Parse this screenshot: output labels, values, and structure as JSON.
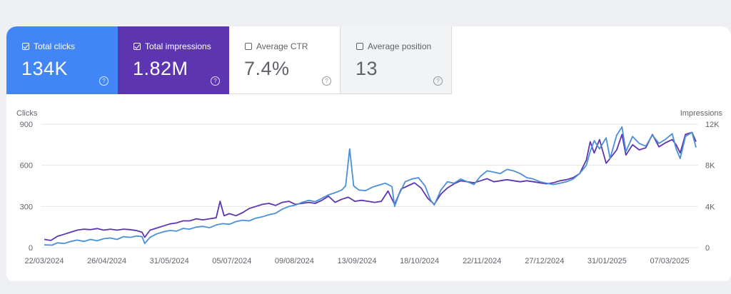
{
  "metrics": [
    {
      "label": "Total clicks",
      "value": "134K",
      "checked": true,
      "color": "#4285f4"
    },
    {
      "label": "Total impressions",
      "value": "1.82M",
      "checked": true,
      "color": "#5e35b1"
    },
    {
      "label": "Average CTR",
      "value": "7.4%",
      "checked": false
    },
    {
      "label": "Average position",
      "value": "13",
      "checked": false
    }
  ],
  "help_glyph": "?",
  "chart_data": {
    "type": "line",
    "ylabel_left": "Clicks",
    "ylabel_right": "Impressions",
    "y_left_ticks": [
      "900",
      "600",
      "300",
      "0"
    ],
    "y_right_ticks": [
      "12K",
      "8K",
      "4K",
      "0"
    ],
    "ylim_left": [
      0,
      900
    ],
    "ylim_right": [
      0,
      12000
    ],
    "x_ticks": [
      "22/03/2024",
      "26/04/2024",
      "31/05/2024",
      "05/07/2024",
      "09/08/2024",
      "13/09/2024",
      "18/10/2024",
      "22/11/2024",
      "27/12/2024",
      "31/01/2025",
      "07/03/2025"
    ],
    "grid": true,
    "series": [
      {
        "name": "Total clicks",
        "axis": "left",
        "color": "#4a90d9",
        "points": [
          [
            0,
            20
          ],
          [
            6,
            18
          ],
          [
            10,
            35
          ],
          [
            15,
            30
          ],
          [
            20,
            45
          ],
          [
            25,
            55
          ],
          [
            30,
            45
          ],
          [
            35,
            60
          ],
          [
            40,
            50
          ],
          [
            45,
            65
          ],
          [
            50,
            70
          ],
          [
            55,
            60
          ],
          [
            60,
            80
          ],
          [
            65,
            75
          ],
          [
            70,
            85
          ],
          [
            74,
            80
          ],
          [
            76,
            30
          ],
          [
            80,
            75
          ],
          [
            85,
            100
          ],
          [
            90,
            115
          ],
          [
            95,
            125
          ],
          [
            100,
            120
          ],
          [
            105,
            140
          ],
          [
            110,
            135
          ],
          [
            115,
            150
          ],
          [
            120,
            155
          ],
          [
            125,
            145
          ],
          [
            130,
            165
          ],
          [
            135,
            175
          ],
          [
            140,
            170
          ],
          [
            145,
            190
          ],
          [
            150,
            200
          ],
          [
            155,
            195
          ],
          [
            160,
            215
          ],
          [
            165,
            225
          ],
          [
            170,
            240
          ],
          [
            175,
            250
          ],
          [
            180,
            280
          ],
          [
            185,
            300
          ],
          [
            190,
            310
          ],
          [
            195,
            330
          ],
          [
            200,
            345
          ],
          [
            205,
            335
          ],
          [
            210,
            360
          ],
          [
            215,
            385
          ],
          [
            220,
            400
          ],
          [
            225,
            420
          ],
          [
            228,
            450
          ],
          [
            231,
            720
          ],
          [
            234,
            450
          ],
          [
            238,
            420
          ],
          [
            243,
            415
          ],
          [
            248,
            440
          ],
          [
            253,
            455
          ],
          [
            258,
            470
          ],
          [
            263,
            445
          ],
          [
            265,
            300
          ],
          [
            268,
            380
          ],
          [
            273,
            480
          ],
          [
            278,
            500
          ],
          [
            283,
            510
          ],
          [
            288,
            450
          ],
          [
            292,
            350
          ],
          [
            295,
            310
          ],
          [
            300,
            420
          ],
          [
            305,
            480
          ],
          [
            310,
            470
          ],
          [
            315,
            500
          ],
          [
            320,
            480
          ],
          [
            325,
            460
          ],
          [
            330,
            520
          ],
          [
            335,
            560
          ],
          [
            340,
            550
          ],
          [
            345,
            540
          ],
          [
            350,
            570
          ],
          [
            355,
            560
          ],
          [
            360,
            540
          ],
          [
            365,
            510
          ],
          [
            370,
            500
          ],
          [
            375,
            480
          ],
          [
            380,
            470
          ],
          [
            385,
            460
          ],
          [
            390,
            470
          ],
          [
            395,
            480
          ],
          [
            400,
            500
          ],
          [
            405,
            540
          ],
          [
            410,
            600
          ],
          [
            413,
            700
          ],
          [
            416,
            780
          ],
          [
            420,
            720
          ],
          [
            425,
            800
          ],
          [
            428,
            650
          ],
          [
            433,
            820
          ],
          [
            437,
            880
          ],
          [
            440,
            700
          ],
          [
            445,
            810
          ],
          [
            450,
            760
          ],
          [
            455,
            740
          ],
          [
            460,
            820
          ],
          [
            465,
            760
          ],
          [
            470,
            790
          ],
          [
            475,
            830
          ],
          [
            478,
            720
          ],
          [
            481,
            650
          ],
          [
            485,
            810
          ],
          [
            490,
            840
          ],
          [
            493,
            730
          ]
        ]
      },
      {
        "name": "Total impressions",
        "axis": "right",
        "color": "#5e35b1",
        "points": [
          [
            0,
            800
          ],
          [
            5,
            700
          ],
          [
            10,
            1100
          ],
          [
            15,
            1300
          ],
          [
            20,
            1500
          ],
          [
            25,
            1700
          ],
          [
            30,
            1800
          ],
          [
            35,
            1750
          ],
          [
            40,
            1850
          ],
          [
            45,
            1700
          ],
          [
            50,
            1800
          ],
          [
            55,
            1700
          ],
          [
            60,
            1800
          ],
          [
            65,
            1750
          ],
          [
            70,
            1650
          ],
          [
            74,
            1500
          ],
          [
            76,
            1000
          ],
          [
            80,
            1700
          ],
          [
            85,
            1900
          ],
          [
            90,
            2100
          ],
          [
            95,
            2300
          ],
          [
            100,
            2400
          ],
          [
            105,
            2600
          ],
          [
            110,
            2600
          ],
          [
            115,
            2800
          ],
          [
            120,
            2700
          ],
          [
            125,
            2800
          ],
          [
            130,
            2900
          ],
          [
            133,
            4500
          ],
          [
            136,
            3100
          ],
          [
            140,
            3300
          ],
          [
            145,
            3100
          ],
          [
            150,
            3400
          ],
          [
            155,
            3800
          ],
          [
            160,
            4000
          ],
          [
            165,
            4200
          ],
          [
            170,
            4300
          ],
          [
            175,
            4100
          ],
          [
            180,
            4400
          ],
          [
            185,
            4500
          ],
          [
            190,
            4200
          ],
          [
            195,
            4300
          ],
          [
            200,
            4400
          ],
          [
            205,
            4300
          ],
          [
            210,
            4600
          ],
          [
            215,
            5000
          ],
          [
            220,
            4400
          ],
          [
            225,
            4700
          ],
          [
            230,
            4900
          ],
          [
            235,
            4500
          ],
          [
            240,
            4600
          ],
          [
            245,
            4500
          ],
          [
            250,
            4400
          ],
          [
            255,
            4500
          ],
          [
            260,
            5500
          ],
          [
            265,
            4200
          ],
          [
            270,
            5700
          ],
          [
            275,
            6000
          ],
          [
            280,
            6300
          ],
          [
            285,
            5800
          ],
          [
            290,
            4800
          ],
          [
            295,
            4200
          ],
          [
            300,
            5200
          ],
          [
            305,
            5800
          ],
          [
            310,
            6200
          ],
          [
            315,
            6500
          ],
          [
            320,
            6400
          ],
          [
            325,
            6300
          ],
          [
            330,
            6500
          ],
          [
            335,
            6700
          ],
          [
            340,
            6400
          ],
          [
            345,
            6500
          ],
          [
            350,
            6600
          ],
          [
            355,
            6500
          ],
          [
            360,
            6400
          ],
          [
            365,
            6500
          ],
          [
            370,
            6400
          ],
          [
            375,
            6300
          ],
          [
            380,
            6200
          ],
          [
            385,
            6300
          ],
          [
            390,
            6500
          ],
          [
            395,
            6600
          ],
          [
            400,
            6800
          ],
          [
            405,
            7200
          ],
          [
            410,
            8500
          ],
          [
            413,
            10300
          ],
          [
            416,
            9200
          ],
          [
            420,
            10500
          ],
          [
            425,
            8200
          ],
          [
            430,
            9000
          ],
          [
            433,
            9500
          ],
          [
            437,
            11000
          ],
          [
            440,
            9000
          ],
          [
            445,
            10000
          ],
          [
            450,
            9500
          ],
          [
            455,
            9700
          ],
          [
            460,
            11000
          ],
          [
            465,
            9800
          ],
          [
            470,
            10200
          ],
          [
            475,
            10500
          ],
          [
            478,
            10000
          ],
          [
            481,
            9200
          ],
          [
            485,
            11000
          ],
          [
            490,
            11200
          ],
          [
            493,
            10300
          ]
        ]
      }
    ]
  }
}
